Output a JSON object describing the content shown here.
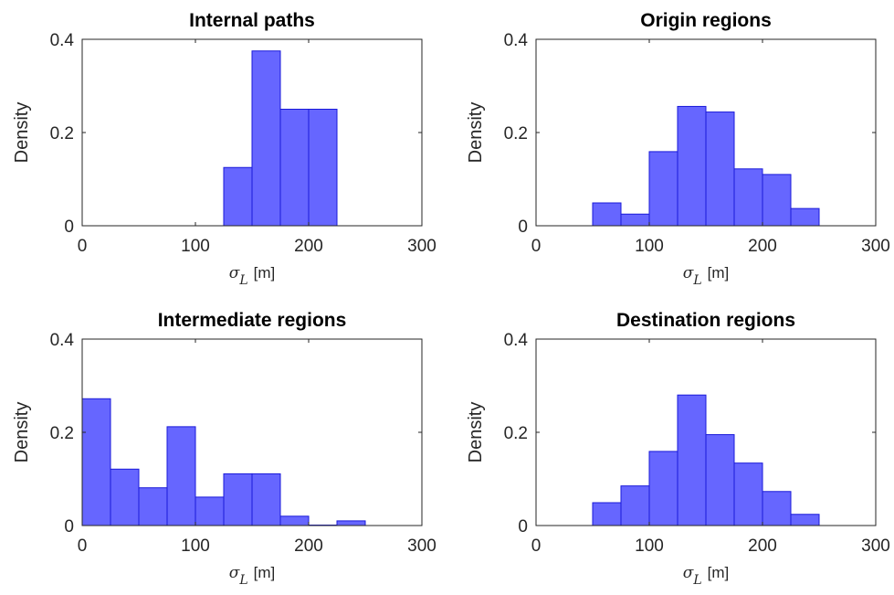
{
  "chart_data": [
    {
      "type": "bar",
      "title": "Internal paths",
      "ylabel": "Density",
      "xlabel_symbol": "σ",
      "xlabel_subscript": "L",
      "xlabel_unit": "[m]",
      "xlim": [
        0,
        300
      ],
      "ylim": [
        0,
        0.4
      ],
      "xticks": [
        "0",
        "100",
        "200",
        "300"
      ],
      "yticks": [
        "0",
        "0.2",
        "0.4"
      ],
      "bin_edges": [
        125,
        150,
        175,
        200,
        225
      ],
      "values": [
        0.125,
        0.375,
        0.25,
        0.25
      ],
      "bar_color": "#6666ff",
      "edge_color": "#1a1ad9"
    },
    {
      "type": "bar",
      "title": "Origin regions",
      "ylabel": "Density",
      "xlabel_symbol": "σ",
      "xlabel_subscript": "L",
      "xlabel_unit": "[m]",
      "xlim": [
        0,
        300
      ],
      "ylim": [
        0,
        0.4
      ],
      "xticks": [
        "0",
        "100",
        "200",
        "300"
      ],
      "yticks": [
        "0",
        "0.2",
        "0.4"
      ],
      "bin_edges": [
        50,
        75,
        100,
        125,
        150,
        175,
        200,
        225,
        250
      ],
      "values": [
        0.049,
        0.025,
        0.159,
        0.256,
        0.244,
        0.122,
        0.11,
        0.037
      ],
      "bar_color": "#6666ff",
      "edge_color": "#1a1ad9"
    },
    {
      "type": "bar",
      "title": "Intermediate regions",
      "ylabel": "Density",
      "xlabel_symbol": "σ",
      "xlabel_subscript": "L",
      "xlabel_unit": "[m]",
      "xlim": [
        0,
        300
      ],
      "ylim": [
        0,
        0.4
      ],
      "xticks": [
        "0",
        "100",
        "200",
        "300"
      ],
      "yticks": [
        "0",
        "0.2",
        "0.4"
      ],
      "bin_edges": [
        0,
        25,
        50,
        75,
        100,
        125,
        150,
        175,
        200,
        225,
        250
      ],
      "values": [
        0.272,
        0.121,
        0.081,
        0.212,
        0.061,
        0.111,
        0.111,
        0.02,
        0.001,
        0.01
      ],
      "bar_color": "#6666ff",
      "edge_color": "#1a1ad9"
    },
    {
      "type": "bar",
      "title": "Destination regions",
      "ylabel": "Density",
      "xlabel_symbol": "σ",
      "xlabel_subscript": "L",
      "xlabel_unit": "[m]",
      "xlim": [
        0,
        300
      ],
      "ylim": [
        0,
        0.4
      ],
      "xticks": [
        "0",
        "100",
        "200",
        "300"
      ],
      "yticks": [
        "0",
        "0.2",
        "0.4"
      ],
      "bin_edges": [
        50,
        75,
        100,
        125,
        150,
        175,
        200,
        225,
        250
      ],
      "values": [
        0.049,
        0.085,
        0.159,
        0.28,
        0.195,
        0.134,
        0.073,
        0.024
      ],
      "bar_color": "#6666ff",
      "edge_color": "#1a1ad9"
    }
  ]
}
